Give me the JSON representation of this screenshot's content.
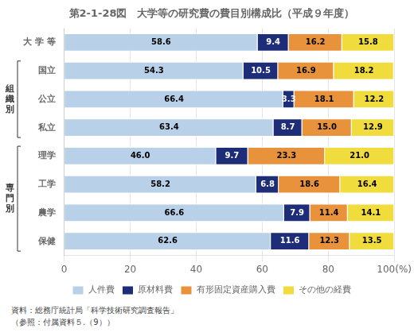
{
  "chart_data": {
    "type": "bar",
    "orientation": "horizontal",
    "stacked": true,
    "title": "第2-1-28図　大学等の研究費の費目別構成比（平成９年度）",
    "categories": [
      "大 学 等",
      "国立",
      "公立",
      "私立",
      "理学",
      "工学",
      "農学",
      "保健"
    ],
    "series": [
      {
        "name": "人件費",
        "color": "#b8d0e8",
        "values": [
          58.6,
          54.3,
          66.4,
          63.4,
          46.0,
          58.2,
          66.6,
          62.6
        ],
        "value_labels": [
          "58.6",
          "54.3",
          "66.4",
          "63.4",
          "46.0",
          "58.2",
          "66.6",
          "62.6"
        ]
      },
      {
        "name": "原材料費",
        "color": "#1e2d78",
        "values": [
          9.4,
          10.5,
          3.3,
          8.7,
          9.7,
          6.8,
          7.9,
          11.6
        ],
        "value_labels": [
          "9.4",
          "10.5",
          "3.3",
          "8.7",
          "9.7",
          "6.8",
          "7.9",
          "11.6"
        ]
      },
      {
        "name": "有形固定資産購入費",
        "color": "#e8923c",
        "values": [
          16.2,
          16.9,
          18.1,
          15.0,
          23.3,
          18.6,
          11.4,
          12.3
        ],
        "value_labels": [
          "16.2",
          "16.9",
          "18.1",
          "15.0",
          "23.3",
          "18.6",
          "11.4",
          "12.3"
        ]
      },
      {
        "name": "その他の経費",
        "color": "#f0dc3c",
        "values": [
          15.8,
          18.2,
          12.2,
          12.9,
          21.0,
          16.4,
          14.1,
          13.5
        ],
        "value_labels": [
          "15.8",
          "18.2",
          "12.2",
          "12.9",
          "21.0",
          "16.4",
          "14.1",
          "13.5"
        ]
      }
    ],
    "xlim": [
      0,
      100
    ],
    "xticks": [
      0,
      20,
      40,
      60,
      80,
      {
        "value": 100,
        "label": "100(%)"
      }
    ],
    "grid": true,
    "legend": "bottom",
    "data_labels": true,
    "groups": [
      {
        "label": "組\n織\n別",
        "categories": [
          "国立",
          "公立",
          "私立"
        ]
      },
      {
        "label": "専\n門\n別",
        "categories": [
          "理学",
          "工学",
          "農学",
          "保健"
        ]
      }
    ],
    "footnotes": [
      "資料：総務庁統計局「科学技術研究調査報告」",
      "（参照：付属資料５.（9））"
    ]
  }
}
